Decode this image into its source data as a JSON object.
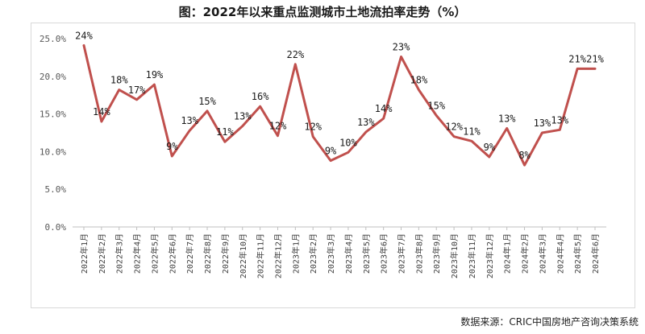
{
  "chart_data": {
    "type": "line",
    "title": "图：2022年以来重点监测城市土地流拍率走势（%）",
    "source": "数据来源：CRIC中国房地产咨询决策系统",
    "ylim": [
      0,
      25
    ],
    "yticks": [
      "0.0%",
      "5.0%",
      "10.0%",
      "15.0%",
      "20.0%",
      "25.0%"
    ],
    "grid": false,
    "color": "#c0504d",
    "categories": [
      "2022年1月",
      "2022年2月",
      "2022年3月",
      "2022年4月",
      "2022年5月",
      "2022年6月",
      "2022年7月",
      "2022年8月",
      "2022年9月",
      "2022年10月",
      "2022年11月",
      "2022年12月",
      "2023年1月",
      "2023年2月",
      "2023年3月",
      "2023年4月",
      "2023年5月",
      "2023年6月",
      "2023年7月",
      "2023年8月",
      "2023年9月",
      "2023年10月",
      "2023年11月",
      "2023年12月",
      "2024年1月",
      "2024年2月",
      "2024年3月",
      "2024年4月",
      "2024年5月",
      "2024年6月"
    ],
    "values": [
      24.1,
      14.0,
      18.2,
      16.9,
      18.9,
      9.4,
      12.8,
      15.4,
      11.3,
      13.4,
      16.0,
      12.1,
      21.6,
      12.0,
      8.8,
      9.9,
      12.6,
      14.4,
      22.6,
      18.2,
      14.8,
      12.0,
      11.4,
      9.3,
      13.1,
      8.2,
      12.5,
      12.9,
      21.0,
      21.0
    ],
    "labels": [
      "24%",
      "14%",
      "18%",
      "17%",
      "19%",
      "9%",
      "13%",
      "15%",
      "11%",
      "13%",
      "16%",
      "12%",
      "22%",
      "12%",
      "9%",
      "10%",
      "13%",
      "14%",
      "23%",
      "18%",
      "15%",
      "12%",
      "11%",
      "9%",
      "13%",
      "8%",
      "13%",
      "13%",
      "21%",
      "21%"
    ]
  }
}
